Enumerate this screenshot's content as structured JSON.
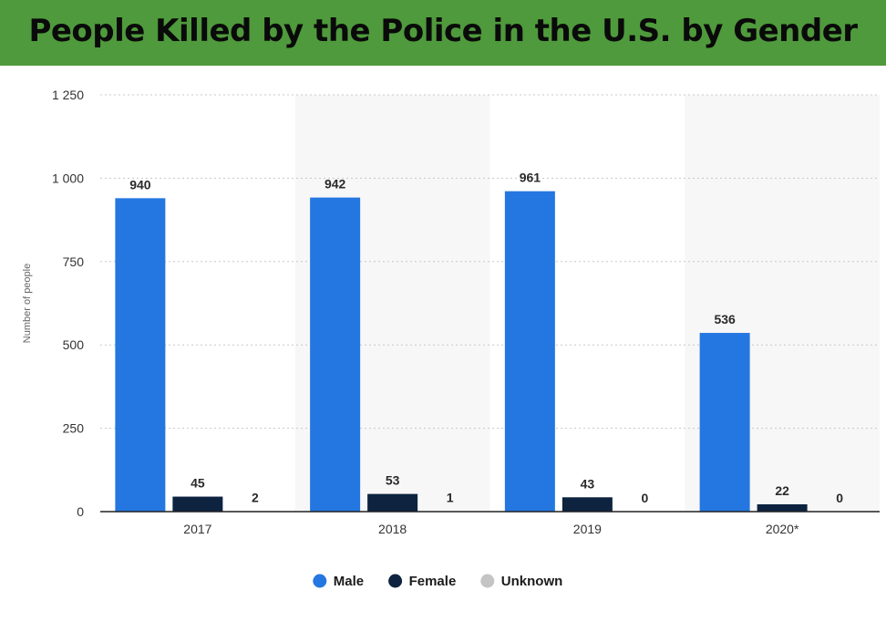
{
  "chart_data": {
    "type": "bar",
    "title": "People Killed by the Police in the U.S. by Gender",
    "xlabel": "",
    "ylabel": "Number of people",
    "categories": [
      "2017",
      "2018",
      "2019",
      "2020*"
    ],
    "series": [
      {
        "name": "Male",
        "color": "#2477e0",
        "values": [
          940,
          942,
          961,
          536
        ]
      },
      {
        "name": "Female",
        "color": "#0d2340",
        "values": [
          45,
          53,
          43,
          22
        ]
      },
      {
        "name": "Unknown",
        "color": "#c4c4c4",
        "values": [
          2,
          1,
          0,
          0
        ]
      }
    ],
    "ylim": [
      0,
      1250
    ],
    "yticks": [
      0,
      250,
      500,
      750,
      1000,
      1250
    ],
    "ytick_labels": [
      "0",
      "250",
      "500",
      "750",
      "1 000",
      "1 250"
    ],
    "grid": true,
    "legend_position": "bottom-center"
  },
  "colors": {
    "title_band": "#4f9a3c",
    "alternate_band": "#f7f7f7"
  }
}
